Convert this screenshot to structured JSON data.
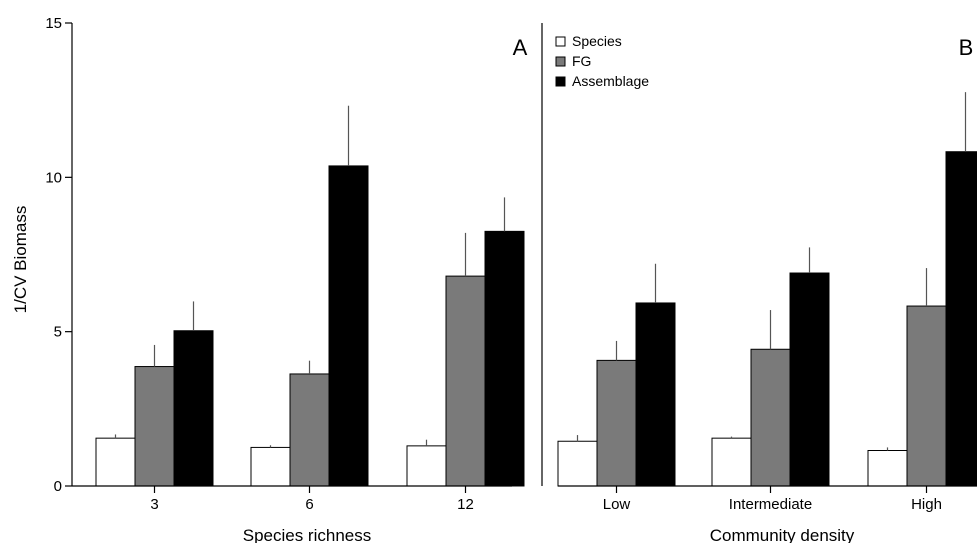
{
  "chart_data": [
    {
      "type": "bar",
      "panel_label": "A",
      "xlabel": "Species richness",
      "ylabel": "1/CV Biomass",
      "ylim": [
        0,
        15
      ],
      "yticks": [
        0,
        5,
        10,
        15
      ],
      "categories": [
        "3",
        "6",
        "12"
      ],
      "series": [
        {
          "name": "Species",
          "color": "#ffffff",
          "values": [
            1.55,
            1.25,
            1.3
          ],
          "errors": [
            0.12,
            0.07,
            0.2
          ]
        },
        {
          "name": "FG",
          "color": "#7a7a7a",
          "values": [
            3.87,
            3.63,
            6.8
          ],
          "errors": [
            0.7,
            0.43,
            1.4
          ]
        },
        {
          "name": "Assemblage",
          "color": "#000000",
          "values": [
            5.03,
            10.37,
            8.25
          ],
          "errors": [
            0.95,
            1.95,
            1.1
          ]
        }
      ]
    },
    {
      "type": "bar",
      "panel_label": "B",
      "xlabel": "Community density",
      "ylim": [
        0,
        15
      ],
      "categories": [
        "Low",
        "Intermediate",
        "High"
      ],
      "series": [
        {
          "name": "Species",
          "color": "#ffffff",
          "values": [
            1.45,
            1.55,
            1.15
          ],
          "errors": [
            0.2,
            0.05,
            0.1
          ]
        },
        {
          "name": "FG",
          "color": "#7a7a7a",
          "values": [
            4.07,
            4.43,
            5.83
          ],
          "errors": [
            0.63,
            1.27,
            1.23
          ]
        },
        {
          "name": "Assemblage",
          "color": "#000000",
          "values": [
            5.93,
            6.9,
            10.83
          ],
          "errors": [
            1.27,
            0.83,
            1.93
          ]
        }
      ]
    }
  ],
  "legend": {
    "placement": "top-left of panel B",
    "items": [
      {
        "label": "Species",
        "color": "#ffffff"
      },
      {
        "label": "FG",
        "color": "#7a7a7a"
      },
      {
        "label": "Assemblage",
        "color": "#000000"
      }
    ]
  }
}
